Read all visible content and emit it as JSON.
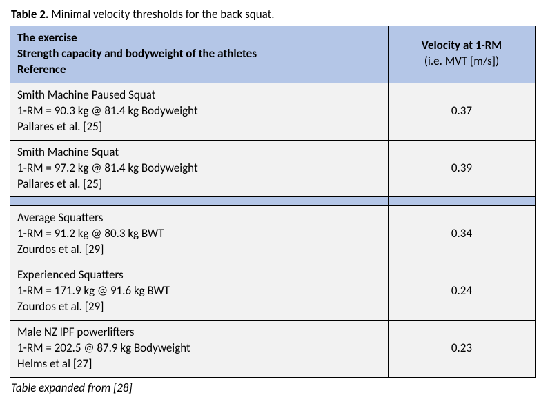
{
  "caption_bold": "Table 2.",
  "caption_rest": " Minimal velocity thresholds for the back squat.",
  "header": {
    "left_line1": "The exercise",
    "left_line2": "Strength capacity and bodyweight of the athletes",
    "left_line3": "Reference",
    "right_bold": "Velocity at 1-RM",
    "right_sub": "(i.e. MVT [m/s])"
  },
  "rows_top": [
    {
      "l1": "Smith Machine Paused Squat",
      "l2": "1-RM = 90.3 kg @ 81.4 kg Bodyweight",
      "l3": "Pallares et al. [25]",
      "val": "0.37"
    },
    {
      "l1": "Smith Machine Squat",
      "l2": "1-RM = 97.2 kg @ 81.4 kg Bodyweight",
      "l3": "Pallares et al. [25]",
      "val": "0.39"
    }
  ],
  "rows_bottom": [
    {
      "l1": "Average Squatters",
      "l2": "1-RM = 91.2 kg @ 80.3 kg BWT",
      "l3": "Zourdos et al. [29]",
      "val": "0.34"
    },
    {
      "l1": "Experienced Squatters",
      "l2": "1-RM = 171.9 kg @ 91.6 kg BWT",
      "l3": "Zourdos et al. [29]",
      "val": "0.24"
    },
    {
      "l1": "Male NZ IPF powerlifters",
      "l2": "1-RM = 202.5 @ 87.9 kg Bodyweight",
      "l3": "Helms et al [27]",
      "val": "0.23"
    }
  ],
  "footnote": "Table expanded from [28]",
  "colors": {
    "header_bg": "#b4c6e7",
    "row_bg": "#f2f2f2",
    "border": "#000000",
    "text": "#000000"
  }
}
